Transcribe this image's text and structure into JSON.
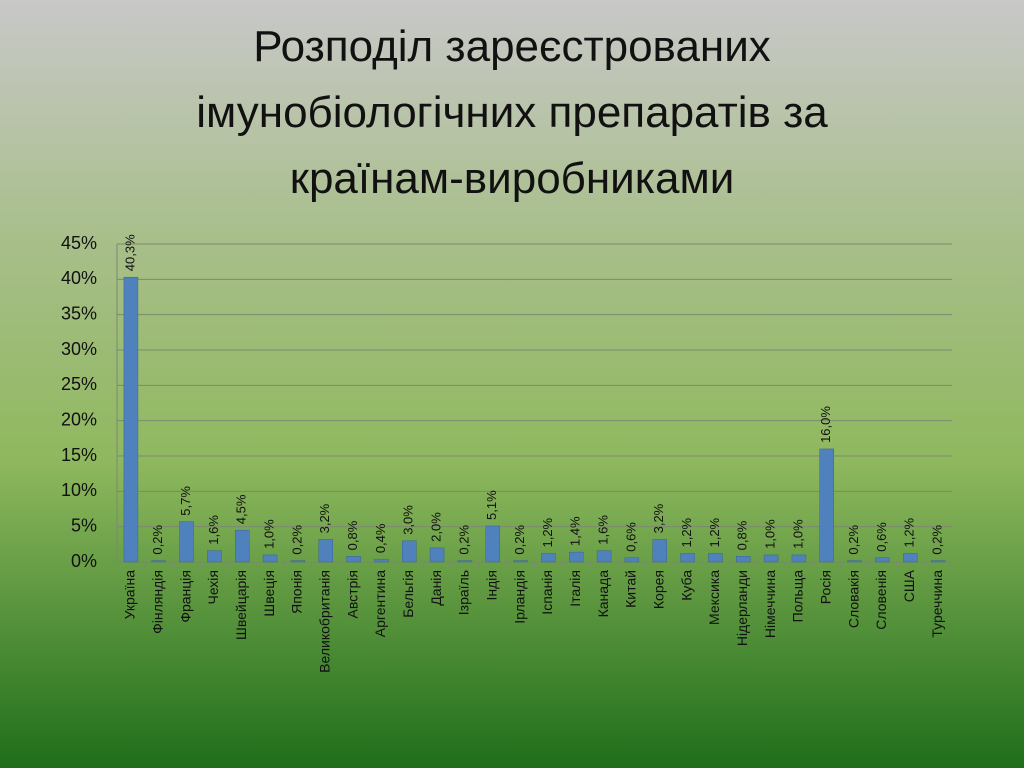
{
  "chart_data": {
    "type": "bar",
    "title": "Розподіл зареєстрованих імунобіологічних препаратів за країнам-виробниками",
    "categories": [
      "Україна",
      "Фінляндія",
      "Франція",
      "Чехія",
      "Швейцарія",
      "Швеція",
      "Японія",
      "Великобританія",
      "Австрія",
      "Аргентина",
      "Бельгія",
      "Данія",
      "Ізраїль",
      "Індія",
      "Ірландія",
      "Іспанія",
      "Італія",
      "Канада",
      "Китай",
      "Корея",
      "Куба",
      "Мексика",
      "Нідерланди",
      "Німеччина",
      "Польща",
      "Росія",
      "Словакія",
      "Словенія",
      "США",
      "Туреччина"
    ],
    "values": [
      40.3,
      0.2,
      5.7,
      1.6,
      4.5,
      1.0,
      0.2,
      3.2,
      0.8,
      0.4,
      3.0,
      2.0,
      0.2,
      5.1,
      0.2,
      1.2,
      1.4,
      1.6,
      0.6,
      3.2,
      1.2,
      1.2,
      0.8,
      1.0,
      1.0,
      16.0,
      0.2,
      0.6,
      1.2,
      0.2
    ],
    "value_labels": [
      "40,3%",
      "0,2%",
      "5,7%",
      "1,6%",
      "4,5%",
      "1,0%",
      "0,2%",
      "3,2%",
      "0,8%",
      "0,4%",
      "3,0%",
      "2,0%",
      "0,2%",
      "5,1%",
      "0,2%",
      "1,2%",
      "1,4%",
      "1,6%",
      "0,6%",
      "3,2%",
      "1,2%",
      "1,2%",
      "0,8%",
      "1,0%",
      "1,0%",
      "16,0%",
      "0,2%",
      "0,6%",
      "1,2%",
      "0,2%"
    ],
    "color": "#4f81bd",
    "ylim": [
      0,
      45
    ],
    "yticks": [
      {
        "value": 0,
        "label": "0%"
      },
      {
        "value": 5,
        "label": "5%"
      },
      {
        "value": 10,
        "label": "10%"
      },
      {
        "value": 15,
        "label": "15%"
      },
      {
        "value": 20,
        "label": "20%"
      },
      {
        "value": 25,
        "label": "25%"
      },
      {
        "value": 30,
        "label": "30%"
      },
      {
        "value": 35,
        "label": "35%"
      },
      {
        "value": 40,
        "label": "40%"
      },
      {
        "value": 45,
        "label": "45%"
      }
    ],
    "grid": true
  }
}
